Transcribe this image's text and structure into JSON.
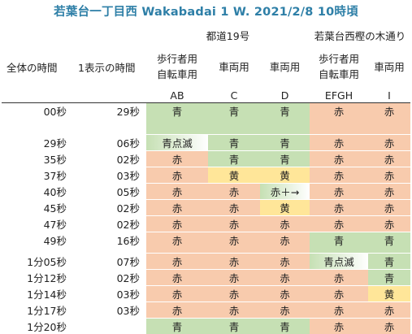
{
  "title": "若葉台一丁目西 Wakabadai 1 W. 2021/2/8 10時頃",
  "groups": {
    "road_a": "都道19号",
    "road_b": "若葉台西樫の木通り"
  },
  "headers": {
    "total_time": "全体の時間",
    "display_time": "1表示の時間",
    "ab": [
      "歩行者用",
      "自転車用"
    ],
    "c": "車両用",
    "d": "車両用",
    "efgh": [
      "歩行者用",
      "自転車用"
    ],
    "i": "車両用"
  },
  "labels": {
    "ab": "AB",
    "c": "C",
    "d": "D",
    "efgh": "EFGH",
    "i": "I"
  },
  "colors": {
    "red": "#f8cbad",
    "green": "#c6e0b4",
    "yellow": "#ffe699",
    "title": "#2e7fa7"
  },
  "rows": [
    {
      "total": "00秒",
      "dur": "29秒",
      "ab": "青",
      "c": "青",
      "d": "青",
      "efgh": "赤",
      "i": "赤",
      "col": {
        "ab": "g",
        "c": "g",
        "d": "g",
        "efgh": "r",
        "i": "r"
      },
      "h": 38
    },
    {
      "total": "29秒",
      "dur": "06秒",
      "ab": "青点滅",
      "c": "青",
      "d": "青",
      "efgh": "赤",
      "i": "赤",
      "col": {
        "ab": "gw",
        "c": "g",
        "d": "g",
        "efgh": "r",
        "i": "r"
      },
      "h": 18
    },
    {
      "total": "35秒",
      "dur": "02秒",
      "ab": "赤",
      "c": "青",
      "d": "青",
      "efgh": "赤",
      "i": "赤",
      "col": {
        "ab": "r",
        "c": "g",
        "d": "g",
        "efgh": "r",
        "i": "r"
      },
      "h": 18
    },
    {
      "total": "37秒",
      "dur": "03秒",
      "ab": "赤",
      "c": "黄",
      "d": "黄",
      "efgh": "赤",
      "i": "赤",
      "col": {
        "ab": "r",
        "c": "y",
        "d": "y",
        "efgh": "r",
        "i": "r"
      },
      "h": 18
    },
    {
      "total": "40秒",
      "dur": "05秒",
      "ab": "赤",
      "c": "赤",
      "d": "赤＋→",
      "efgh": "赤",
      "i": "赤",
      "col": {
        "ab": "r",
        "c": "r",
        "d": "gw",
        "efgh": "r",
        "i": "r"
      },
      "h": 18
    },
    {
      "total": "45秒",
      "dur": "02秒",
      "ab": "赤",
      "c": "赤",
      "d": "黄",
      "efgh": "赤",
      "i": "赤",
      "col": {
        "ab": "r",
        "c": "r",
        "d": "y",
        "efgh": "r",
        "i": "r"
      },
      "h": 18
    },
    {
      "total": "47秒",
      "dur": "02秒",
      "ab": "赤",
      "c": "赤",
      "d": "赤",
      "efgh": "赤",
      "i": "赤",
      "col": {
        "ab": "r",
        "c": "r",
        "d": "r",
        "efgh": "r",
        "i": "r"
      },
      "h": 18
    },
    {
      "total": "49秒",
      "dur": "16秒",
      "ab": "赤",
      "c": "赤",
      "d": "赤",
      "efgh": "青",
      "i": "青",
      "col": {
        "ab": "r",
        "c": "r",
        "d": "r",
        "efgh": "g",
        "i": "g"
      },
      "h": 25
    },
    {
      "total": "1分05秒",
      "dur": "07秒",
      "ab": "赤",
      "c": "赤",
      "d": "赤",
      "efgh": "青点滅",
      "i": "青",
      "col": {
        "ab": "r",
        "c": "r",
        "d": "r",
        "efgh": "gw",
        "i": "g"
      },
      "h": 18
    },
    {
      "total": "1分12秒",
      "dur": "02秒",
      "ab": "赤",
      "c": "赤",
      "d": "赤",
      "efgh": "赤",
      "i": "青",
      "col": {
        "ab": "r",
        "c": "r",
        "d": "r",
        "efgh": "r",
        "i": "g"
      },
      "h": 18
    },
    {
      "total": "1分14秒",
      "dur": "03秒",
      "ab": "赤",
      "c": "赤",
      "d": "赤",
      "efgh": "赤",
      "i": "黄",
      "col": {
        "ab": "r",
        "c": "r",
        "d": "r",
        "efgh": "r",
        "i": "y"
      },
      "h": 18
    },
    {
      "total": "1分17秒",
      "dur": "03秒",
      "ab": "赤",
      "c": "赤",
      "d": "赤",
      "efgh": "赤",
      "i": "赤",
      "col": {
        "ab": "r",
        "c": "r",
        "d": "r",
        "efgh": "r",
        "i": "r"
      },
      "h": 18
    },
    {
      "total": "1分20秒",
      "dur": "",
      "ab": "青",
      "c": "青",
      "d": "青",
      "efgh": "赤",
      "i": "赤",
      "col": {
        "ab": "g",
        "c": "g",
        "d": "g",
        "efgh": "r",
        "i": "r"
      },
      "h": 18
    }
  ]
}
